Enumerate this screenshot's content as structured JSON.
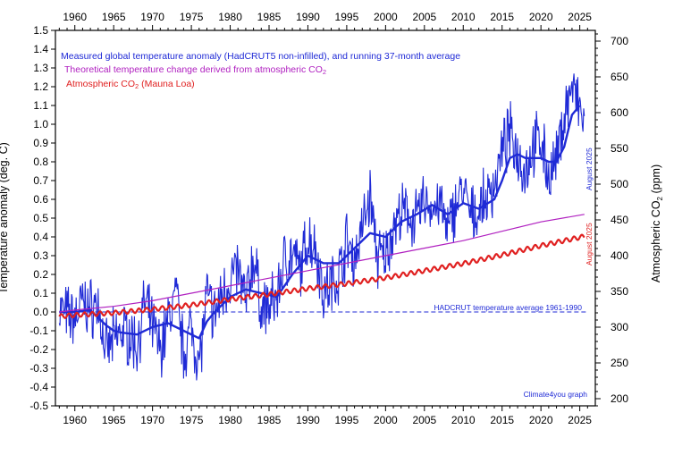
{
  "chart_data": {
    "type": "line",
    "x_range": [
      1957.5,
      2027
    ],
    "x_ticks": [
      1960,
      1965,
      1970,
      1975,
      1980,
      1985,
      1990,
      1995,
      2000,
      2005,
      2010,
      2015,
      2020,
      2025
    ],
    "y_left": {
      "label": "Temperature anomaly (deg. C)",
      "range": [
        -0.5,
        1.5
      ],
      "ticks": [
        -0.5,
        -0.4,
        -0.3,
        -0.2,
        -0.1,
        0.0,
        0.1,
        0.2,
        0.3,
        0.4,
        0.5,
        0.6,
        0.7,
        0.8,
        0.9,
        1.0,
        1.1,
        1.2,
        1.3,
        1.4,
        1.5
      ]
    },
    "y_right": {
      "label_main": "Atmospheric CO",
      "label_sub": "2",
      "label_unit": " (ppm)",
      "range": [
        190,
        715
      ],
      "ticks": [
        200,
        250,
        300,
        350,
        400,
        450,
        500,
        550,
        600,
        650,
        700
      ]
    },
    "legend": [
      {
        "text": "Measured global temperature anomaly (HadCRUT5 non-infilled), and running 37-month average",
        "color": "#1f2ad6"
      },
      {
        "text": "Theoretical temperature change derived from atmospheric CO",
        "sub": "2",
        "color": "#b020c0"
      },
      {
        "text": "Atmospheric CO",
        "sub": "2",
        "text2": " (Mauna Loa)",
        "color": "#e02020"
      }
    ],
    "annotations": {
      "baseline_label": "HADCRUT temperature average 1961-1990",
      "baseline_value": 0.0,
      "date_temp": "August 2025",
      "date_co2": "August 2025",
      "credit": "Climate4you graph"
    },
    "series": [
      {
        "name": "Monthly temperature anomaly",
        "color": "#1f2ad6",
        "x": [
          1958,
          1959,
          1960,
          1961,
          1962,
          1963,
          1964,
          1965,
          1966,
          1967,
          1968,
          1969,
          1970,
          1971,
          1972,
          1973,
          1974,
          1975,
          1976,
          1977,
          1978,
          1979,
          1980,
          1981,
          1982,
          1983,
          1984,
          1985,
          1986,
          1987,
          1988,
          1989,
          1990,
          1991,
          1992,
          1993,
          1994,
          1995,
          1996,
          1997,
          1998,
          1999,
          2000,
          2001,
          2002,
          2003,
          2004,
          2005,
          2006,
          2007,
          2008,
          2009,
          2010,
          2011,
          2012,
          2013,
          2014,
          2015,
          2016,
          2017,
          2018,
          2019,
          2020,
          2021,
          2022,
          2023,
          2024,
          2025.6
        ],
        "y": [
          0.02,
          -0.02,
          -0.03,
          0.05,
          0.02,
          0.04,
          -0.22,
          -0.15,
          -0.1,
          -0.12,
          -0.18,
          0.05,
          -0.08,
          -0.2,
          -0.05,
          0.1,
          -0.22,
          -0.08,
          -0.28,
          0.08,
          -0.02,
          0.1,
          0.18,
          0.22,
          0.05,
          0.3,
          0.02,
          0.02,
          0.08,
          0.28,
          0.3,
          0.22,
          0.4,
          0.35,
          0.1,
          0.15,
          0.2,
          0.38,
          0.28,
          0.45,
          0.62,
          0.28,
          0.3,
          0.45,
          0.52,
          0.52,
          0.48,
          0.6,
          0.55,
          0.58,
          0.42,
          0.58,
          0.65,
          0.5,
          0.55,
          0.6,
          0.68,
          0.85,
          0.95,
          0.85,
          0.75,
          0.88,
          0.92,
          0.72,
          0.8,
          1.05,
          1.2,
          1.0
        ]
      },
      {
        "name": "Running 37-month average",
        "color": "#1f2ad6",
        "x": [
          1958,
          1960,
          1962,
          1964,
          1965,
          1966,
          1968,
          1970,
          1972,
          1974,
          1976,
          1977,
          1978,
          1980,
          1982,
          1984,
          1986,
          1988,
          1990,
          1992,
          1994,
          1996,
          1998,
          2000,
          2002,
          2004,
          2006,
          2008,
          2010,
          2012,
          2014,
          2015,
          2016,
          2017,
          2018,
          2020,
          2021,
          2022,
          2023,
          2024,
          2025
        ],
        "y": [
          0.0,
          0.0,
          0.01,
          -0.07,
          -0.1,
          -0.11,
          -0.12,
          -0.08,
          -0.06,
          -0.1,
          -0.14,
          -0.05,
          0.0,
          0.08,
          0.12,
          0.1,
          0.08,
          0.2,
          0.3,
          0.26,
          0.26,
          0.34,
          0.42,
          0.4,
          0.48,
          0.52,
          0.57,
          0.52,
          0.58,
          0.55,
          0.6,
          0.7,
          0.82,
          0.84,
          0.82,
          0.82,
          0.8,
          0.8,
          0.88,
          1.05,
          1.1
        ]
      },
      {
        "name": "Atmospheric CO2 (Mauna Loa)",
        "color": "#e02020",
        "axis": "right",
        "x": [
          1958,
          1960,
          1965,
          1970,
          1975,
          1980,
          1985,
          1990,
          1995,
          2000,
          2005,
          2010,
          2015,
          2020,
          2025.6
        ],
        "y": [
          315,
          317,
          320,
          325,
          331,
          339,
          346,
          354,
          361,
          369,
          379,
          389,
          401,
          414,
          427
        ]
      },
      {
        "name": "Theoretical temperature change from CO2",
        "color": "#b020c0",
        "x": [
          1958,
          1960,
          1965,
          1970,
          1975,
          1980,
          1985,
          1990,
          1995,
          2000,
          2005,
          2010,
          2015,
          2020,
          2025.6
        ],
        "y": [
          0.0,
          0.01,
          0.03,
          0.06,
          0.1,
          0.14,
          0.18,
          0.22,
          0.26,
          0.3,
          0.34,
          0.38,
          0.43,
          0.48,
          0.52
        ]
      }
    ]
  }
}
